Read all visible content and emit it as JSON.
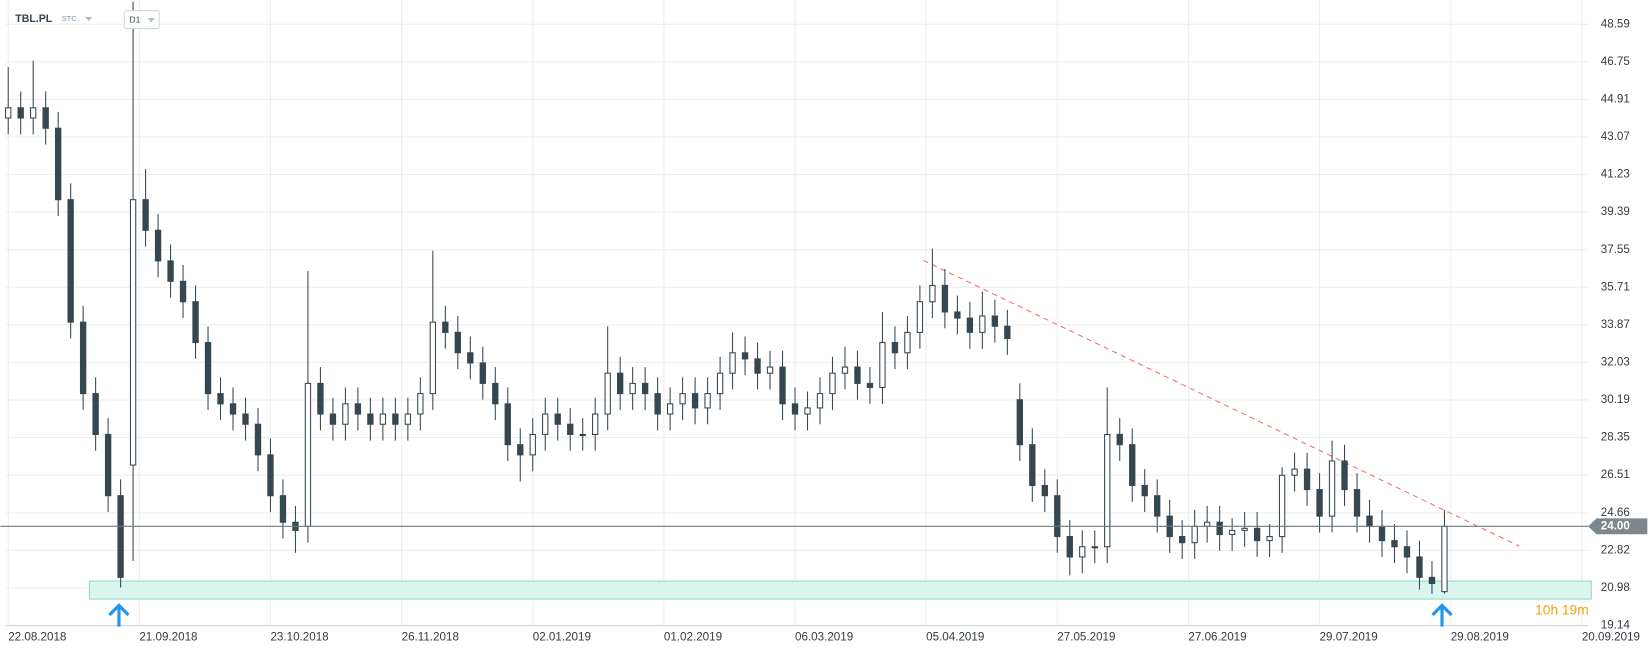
{
  "chart_data": {
    "type": "candlestick",
    "title": "TBL.PL",
    "subtitle": "STC",
    "timeframe": "D1",
    "countdown": "10h 19m",
    "current_price": {
      "value": 24,
      "label": "24.00"
    },
    "up_color": "#ffffff",
    "down_color": "#37474f",
    "line_color": "#37474f",
    "grid": true,
    "ylim": [
      19.14,
      49.78
    ],
    "yticks": [
      48.59,
      46.75,
      44.91,
      43.07,
      41.23,
      39.39,
      37.55,
      35.71,
      33.87,
      32.03,
      30.19,
      28.35,
      26.51,
      24.66,
      22.82,
      20.98,
      19.14
    ],
    "xlim": [
      -0.2,
      126.5
    ],
    "xticks": [
      {
        "value": 0,
        "label": "22.08.2018"
      },
      {
        "value": 10.5,
        "label": "21.09.2018"
      },
      {
        "value": 21,
        "label": "23.10.2018"
      },
      {
        "value": 31.5,
        "label": "26.11.2018"
      },
      {
        "value": 42,
        "label": "02.01.2019"
      },
      {
        "value": 52.5,
        "label": "01.02.2019"
      },
      {
        "value": 63,
        "label": "06.03.2019"
      },
      {
        "value": 73.5,
        "label": "05.04.2019"
      },
      {
        "value": 84,
        "label": "27.05.2019"
      },
      {
        "value": 94.5,
        "label": "27.06.2019"
      },
      {
        "value": 105,
        "label": "29.07.2019"
      },
      {
        "value": 115.5,
        "label": "29.08.2019"
      },
      {
        "value": 126,
        "label": "20.09.2019"
      }
    ],
    "open": [
      44,
      44.5,
      44,
      44.5,
      43.5,
      40,
      34,
      30.5,
      28.5,
      25.5,
      27,
      40,
      38.5,
      37,
      36,
      35,
      33,
      30.5,
      30,
      29.5,
      29,
      27.5,
      25.5,
      24.2,
      24,
      31,
      29.5,
      29,
      30,
      29.5,
      29,
      29.5,
      29,
      29.5,
      30.5,
      34,
      33.5,
      32.5,
      32,
      31,
      30,
      28,
      27.5,
      28.5,
      29.5,
      29,
      28.5,
      28.5,
      29.5,
      31.5,
      30.5,
      31,
      30.5,
      29.5,
      30,
      30.5,
      29.8,
      30.5,
      31.5,
      32.5,
      32.2,
      31.5,
      31.8,
      30,
      29.5,
      29.8,
      30.5,
      31.5,
      31.8,
      31,
      30.8,
      33,
      32.5,
      33.5,
      35,
      35.8,
      34.5,
      34.2,
      33.5,
      34.3,
      33.8,
      30.2,
      28,
      26,
      25.5,
      23.5,
      22.5,
      23,
      23,
      28.5,
      28,
      26,
      25.5,
      24.5,
      23.5,
      23.2,
      24,
      24.2,
      23.6,
      23.8,
      23.9,
      23.3,
      23.5,
      26.5,
      26.8,
      25.8,
      24.5,
      27.2,
      25.8,
      24.5,
      24,
      23.3,
      23,
      22.5,
      21.5,
      20.8
    ],
    "high": [
      46.5,
      45.3,
      46.8,
      45.3,
      44.3,
      40.8,
      34.8,
      31.3,
      29.3,
      26.3,
      49.7,
      41.5,
      39.3,
      37.8,
      36.8,
      35.8,
      33.8,
      31.3,
      30.8,
      30.3,
      29.8,
      28.3,
      26.3,
      25,
      36.5,
      31.8,
      30.3,
      30.8,
      30.8,
      30.3,
      30.3,
      30.3,
      30.3,
      31.3,
      37.5,
      34.8,
      34.3,
      33.3,
      32.8,
      31.8,
      30.8,
      28.8,
      29.3,
      30.3,
      30.3,
      29.8,
      29.3,
      30.3,
      33.8,
      32.3,
      31.8,
      31.8,
      31.3,
      30.8,
      31.3,
      31.3,
      31.3,
      32.3,
      33.5,
      33.3,
      33,
      32.6,
      32.6,
      30.8,
      30.6,
      31.3,
      32.3,
      32.8,
      32.6,
      31.8,
      34.5,
      33.8,
      34.3,
      35.8,
      37.6,
      36.6,
      35.3,
      35,
      35.5,
      35.1,
      34.6,
      31,
      28.8,
      26.8,
      26.3,
      24.3,
      23.8,
      23.8,
      30.8,
      29.3,
      28.8,
      26.8,
      26.3,
      25.3,
      24.3,
      24.8,
      25,
      25,
      24.4,
      24.7,
      24.7,
      24.1,
      26.9,
      27.6,
      27.6,
      26.6,
      28.2,
      28,
      26.6,
      25.3,
      24.8,
      24.1,
      23.8,
      23.3,
      22.3,
      24.8
    ],
    "low": [
      43.2,
      43.2,
      43.2,
      42.7,
      39.2,
      33.2,
      29.7,
      27.7,
      24.7,
      21,
      22.3,
      37.7,
      36.2,
      35.2,
      34.2,
      32.2,
      29.7,
      29.2,
      28.7,
      28.2,
      26.7,
      24.7,
      23.4,
      22.7,
      23.2,
      28.7,
      28.2,
      28.2,
      28.7,
      28.2,
      28.2,
      28.2,
      28.2,
      28.7,
      29.7,
      32.7,
      31.7,
      31.2,
      30.2,
      29.2,
      27.2,
      26.2,
      26.7,
      27.7,
      28.2,
      27.7,
      27.7,
      27.7,
      28.7,
      29.7,
      29.7,
      29.7,
      28.7,
      28.7,
      29.2,
      29,
      29,
      29.7,
      30.7,
      31.4,
      30.7,
      30.7,
      29.2,
      28.7,
      28.7,
      29,
      29.7,
      30.7,
      30.2,
      30,
      30,
      31.7,
      31.7,
      32.7,
      34.2,
      33.7,
      33.4,
      32.7,
      32.7,
      33,
      32.4,
      27.2,
      25.2,
      24.7,
      22.7,
      21.6,
      21.7,
      22.2,
      22.2,
      27.2,
      25.2,
      24.7,
      23.7,
      22.7,
      22.4,
      22.4,
      23.2,
      22.8,
      22.8,
      23,
      22.5,
      22.5,
      22.7,
      25.7,
      25,
      23.7,
      23.7,
      25,
      23.7,
      23.2,
      22.5,
      22.2,
      21.7,
      20.9,
      20.7,
      20.7
    ],
    "close": [
      44.5,
      44,
      44.5,
      43.5,
      40,
      34,
      30.5,
      28.5,
      25.5,
      21.5,
      40,
      38.5,
      37,
      36,
      35,
      33,
      30.5,
      30,
      29.5,
      29,
      27.5,
      25.5,
      24.2,
      23.8,
      31,
      29.5,
      29,
      30,
      29.5,
      29,
      29.5,
      29,
      29.5,
      30.5,
      34,
      33.5,
      32.5,
      32,
      31,
      30,
      28,
      27.5,
      28.5,
      29.5,
      29,
      28.5,
      28.5,
      29.5,
      31.5,
      30.5,
      31,
      30.5,
      29.5,
      30,
      30.5,
      29.8,
      30.5,
      31.5,
      32.5,
      32.2,
      31.5,
      31.8,
      30,
      29.5,
      29.8,
      30.5,
      31.5,
      31.8,
      31,
      30.8,
      33,
      32.5,
      33.5,
      35,
      35.8,
      34.5,
      34.2,
      33.5,
      34.3,
      33.8,
      33.2,
      28,
      26,
      25.5,
      23.5,
      22.5,
      23,
      23,
      28.5,
      28,
      26,
      25.5,
      24.5,
      23.5,
      23.2,
      24,
      24.2,
      23.6,
      23.8,
      23.9,
      23.3,
      23.5,
      26.5,
      26.8,
      25.8,
      24.5,
      27.2,
      25.8,
      24.5,
      24,
      23.3,
      23,
      22.5,
      21.5,
      21.2,
      24
    ]
  }
}
